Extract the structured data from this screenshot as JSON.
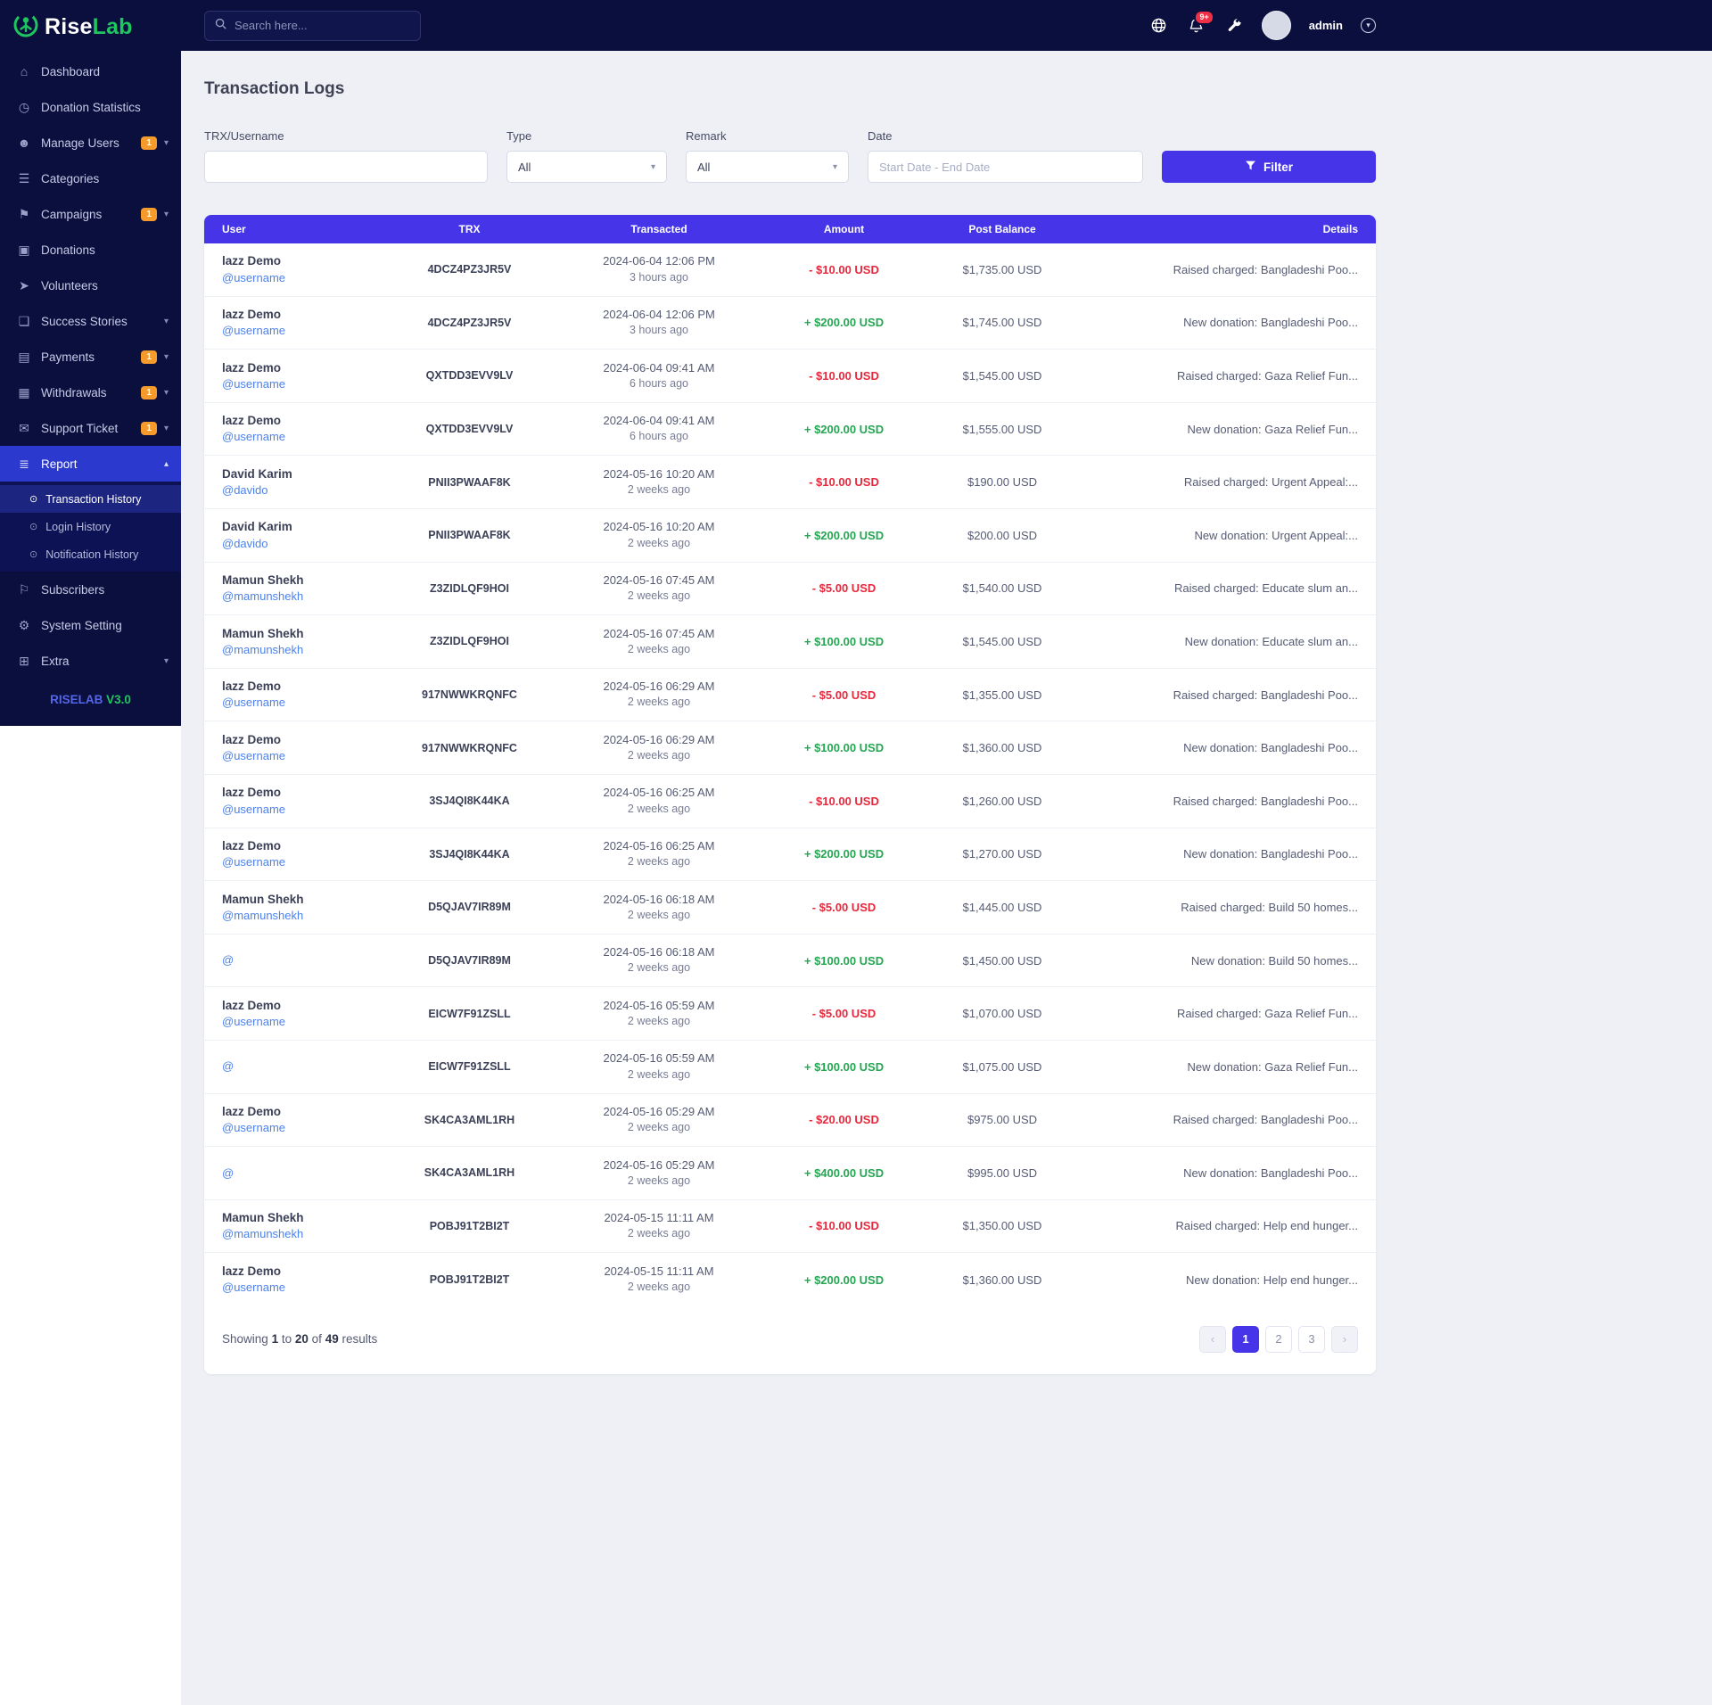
{
  "brand": {
    "primary": "Rise",
    "secondary": "Lab"
  },
  "topbar": {
    "search_placeholder": "Search here...",
    "notification_count": "9+",
    "user_name": "admin",
    "icons": {
      "search": "search-icon",
      "globe": "globe-icon",
      "notifications": "bell-icon",
      "settings": "wrench-icon",
      "user_menu": "chevron-down-icon"
    }
  },
  "sidebar": {
    "items": [
      {
        "label": "Dashboard",
        "icon": "dashboard-icon"
      },
      {
        "label": "Donation Statistics",
        "icon": "clock-icon"
      },
      {
        "label": "Manage Users",
        "icon": "users-icon",
        "badge": "1",
        "chevron": "down"
      },
      {
        "label": "Categories",
        "icon": "categories-icon"
      },
      {
        "label": "Campaigns",
        "icon": "campaign-icon",
        "badge": "1",
        "chevron": "down"
      },
      {
        "label": "Donations",
        "icon": "donation-icon"
      },
      {
        "label": "Volunteers",
        "icon": "volunteer-icon"
      },
      {
        "label": "Success Stories",
        "icon": "stories-icon",
        "chevron": "down"
      },
      {
        "label": "Payments",
        "icon": "payments-icon",
        "badge": "1",
        "chevron": "down"
      },
      {
        "label": "Withdrawals",
        "icon": "withdrawals-icon",
        "badge": "1",
        "chevron": "down"
      },
      {
        "label": "Support Ticket",
        "icon": "ticket-icon",
        "badge": "1",
        "chevron": "down"
      },
      {
        "label": "Report",
        "icon": "report-icon",
        "chevron": "up",
        "active": true,
        "submenu": [
          {
            "label": "Transaction History",
            "active": true
          },
          {
            "label": "Login History"
          },
          {
            "label": "Notification History"
          }
        ]
      },
      {
        "label": "Subscribers",
        "icon": "subscribers-icon"
      },
      {
        "label": "System Setting",
        "icon": "gear-icon"
      },
      {
        "label": "Extra",
        "icon": "extra-icon",
        "chevron": "down"
      }
    ],
    "footer_brand": "RISELAB",
    "footer_version": "V3.0"
  },
  "page": {
    "title": "Transaction Logs"
  },
  "filters": {
    "trx_username_label": "TRX/Username",
    "trx_username_value": "",
    "type_label": "Type",
    "type_value": "All",
    "remark_label": "Remark",
    "remark_value": "All",
    "date_label": "Date",
    "date_placeholder": "Start Date - End Date",
    "filter_button": "Filter"
  },
  "table": {
    "headers": [
      "User",
      "TRX",
      "Transacted",
      "Amount",
      "Post Balance",
      "Details"
    ],
    "rows": [
      {
        "user": "lazz Demo",
        "username": "@username",
        "trx": "4DCZ4PZ3JR5V",
        "date": "2024-06-04 12:06 PM",
        "ago": "3 hours ago",
        "amount": "- $10.00 USD",
        "amount_type": "debit",
        "balance": "$1,735.00 USD",
        "details": "Raised charged: Bangladeshi Poo..."
      },
      {
        "user": "lazz Demo",
        "username": "@username",
        "trx": "4DCZ4PZ3JR5V",
        "date": "2024-06-04 12:06 PM",
        "ago": "3 hours ago",
        "amount": "+ $200.00 USD",
        "amount_type": "credit",
        "balance": "$1,745.00 USD",
        "details": "New donation: Bangladeshi Poo..."
      },
      {
        "user": "lazz Demo",
        "username": "@username",
        "trx": "QXTDD3EVV9LV",
        "date": "2024-06-04 09:41 AM",
        "ago": "6 hours ago",
        "amount": "- $10.00 USD",
        "amount_type": "debit",
        "balance": "$1,545.00 USD",
        "details": "Raised charged: Gaza Relief Fun..."
      },
      {
        "user": "lazz Demo",
        "username": "@username",
        "trx": "QXTDD3EVV9LV",
        "date": "2024-06-04 09:41 AM",
        "ago": "6 hours ago",
        "amount": "+ $200.00 USD",
        "amount_type": "credit",
        "balance": "$1,555.00 USD",
        "details": "New donation: Gaza Relief Fun..."
      },
      {
        "user": "David Karim",
        "username": "@davido",
        "trx": "PNII3PWAAF8K",
        "date": "2024-05-16 10:20 AM",
        "ago": "2 weeks ago",
        "amount": "- $10.00 USD",
        "amount_type": "debit",
        "balance": "$190.00 USD",
        "details": "Raised charged: Urgent Appeal:..."
      },
      {
        "user": "David Karim",
        "username": "@davido",
        "trx": "PNII3PWAAF8K",
        "date": "2024-05-16 10:20 AM",
        "ago": "2 weeks ago",
        "amount": "+ $200.00 USD",
        "amount_type": "credit",
        "balance": "$200.00 USD",
        "details": "New donation: Urgent Appeal:..."
      },
      {
        "user": "Mamun Shekh",
        "username": "@mamunshekh",
        "trx": "Z3ZIDLQF9HOI",
        "date": "2024-05-16 07:45 AM",
        "ago": "2 weeks ago",
        "amount": "- $5.00 USD",
        "amount_type": "debit",
        "balance": "$1,540.00 USD",
        "details": "Raised charged: Educate slum an..."
      },
      {
        "user": "Mamun Shekh",
        "username": "@mamunshekh",
        "trx": "Z3ZIDLQF9HOI",
        "date": "2024-05-16 07:45 AM",
        "ago": "2 weeks ago",
        "amount": "+ $100.00 USD",
        "amount_type": "credit",
        "balance": "$1,545.00 USD",
        "details": "New donation: Educate slum an..."
      },
      {
        "user": "lazz Demo",
        "username": "@username",
        "trx": "917NWWKRQNFC",
        "date": "2024-05-16 06:29 AM",
        "ago": "2 weeks ago",
        "amount": "- $5.00 USD",
        "amount_type": "debit",
        "balance": "$1,355.00 USD",
        "details": "Raised charged: Bangladeshi Poo..."
      },
      {
        "user": "lazz Demo",
        "username": "@username",
        "trx": "917NWWKRQNFC",
        "date": "2024-05-16 06:29 AM",
        "ago": "2 weeks ago",
        "amount": "+ $100.00 USD",
        "amount_type": "credit",
        "balance": "$1,360.00 USD",
        "details": "New donation: Bangladeshi Poo..."
      },
      {
        "user": "lazz Demo",
        "username": "@username",
        "trx": "3SJ4QI8K44KA",
        "date": "2024-05-16 06:25 AM",
        "ago": "2 weeks ago",
        "amount": "- $10.00 USD",
        "amount_type": "debit",
        "balance": "$1,260.00 USD",
        "details": "Raised charged: Bangladeshi Poo..."
      },
      {
        "user": "lazz Demo",
        "username": "@username",
        "trx": "3SJ4QI8K44KA",
        "date": "2024-05-16 06:25 AM",
        "ago": "2 weeks ago",
        "amount": "+ $200.00 USD",
        "amount_type": "credit",
        "balance": "$1,270.00 USD",
        "details": "New donation: Bangladeshi Poo..."
      },
      {
        "user": "Mamun Shekh",
        "username": "@mamunshekh",
        "trx": "D5QJAV7IR89M",
        "date": "2024-05-16 06:18 AM",
        "ago": "2 weeks ago",
        "amount": "- $5.00 USD",
        "amount_type": "debit",
        "balance": "$1,445.00 USD",
        "details": "Raised charged: Build 50 homes..."
      },
      {
        "user": "",
        "username": "@",
        "trx": "D5QJAV7IR89M",
        "date": "2024-05-16 06:18 AM",
        "ago": "2 weeks ago",
        "amount": "+ $100.00 USD",
        "amount_type": "credit",
        "balance": "$1,450.00 USD",
        "details": "New donation: Build 50 homes..."
      },
      {
        "user": "lazz Demo",
        "username": "@username",
        "trx": "EICW7F91ZSLL",
        "date": "2024-05-16 05:59 AM",
        "ago": "2 weeks ago",
        "amount": "- $5.00 USD",
        "amount_type": "debit",
        "balance": "$1,070.00 USD",
        "details": "Raised charged: Gaza Relief Fun..."
      },
      {
        "user": "",
        "username": "@",
        "trx": "EICW7F91ZSLL",
        "date": "2024-05-16 05:59 AM",
        "ago": "2 weeks ago",
        "amount": "+ $100.00 USD",
        "amount_type": "credit",
        "balance": "$1,075.00 USD",
        "details": "New donation: Gaza Relief Fun..."
      },
      {
        "user": "lazz Demo",
        "username": "@username",
        "trx": "SK4CA3AML1RH",
        "date": "2024-05-16 05:29 AM",
        "ago": "2 weeks ago",
        "amount": "- $20.00 USD",
        "amount_type": "debit",
        "balance": "$975.00 USD",
        "details": "Raised charged: Bangladeshi Poo..."
      },
      {
        "user": "",
        "username": "@",
        "trx": "SK4CA3AML1RH",
        "date": "2024-05-16 05:29 AM",
        "ago": "2 weeks ago",
        "amount": "+ $400.00 USD",
        "amount_type": "credit",
        "balance": "$995.00 USD",
        "details": "New donation: Bangladeshi Poo..."
      },
      {
        "user": "Mamun Shekh",
        "username": "@mamunshekh",
        "trx": "POBJ91T2BI2T",
        "date": "2024-05-15 11:11 AM",
        "ago": "2 weeks ago",
        "amount": "- $10.00 USD",
        "amount_type": "debit",
        "balance": "$1,350.00 USD",
        "details": "Raised charged: Help end hunger..."
      },
      {
        "user": "lazz Demo",
        "username": "@username",
        "trx": "POBJ91T2BI2T",
        "date": "2024-05-15 11:11 AM",
        "ago": "2 weeks ago",
        "amount": "+ $200.00 USD",
        "amount_type": "credit",
        "balance": "$1,360.00 USD",
        "details": "New donation: Help end hunger..."
      }
    ]
  },
  "footer": {
    "results_summary": {
      "showing": "Showing",
      "from": "1",
      "to_word": "to",
      "to": "20",
      "of_word": "of",
      "total": "49",
      "results_word": "results"
    },
    "pagination": [
      {
        "label": "‹",
        "kind": "prev"
      },
      {
        "label": "1",
        "active": true
      },
      {
        "label": "2"
      },
      {
        "label": "3"
      },
      {
        "label": "›",
        "kind": "next"
      }
    ]
  }
}
